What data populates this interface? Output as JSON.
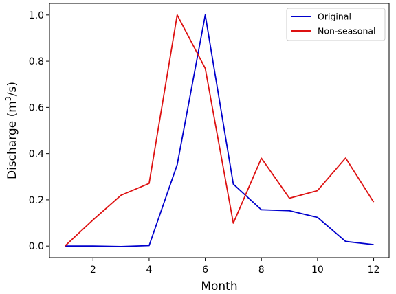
{
  "chart_data": {
    "type": "line",
    "title": "",
    "xlabel": "Month",
    "ylabel_main": "Discharge (m",
    "ylabel_sup": "3",
    "ylabel_tail": "/s)",
    "x": [
      1,
      2,
      3,
      4,
      5,
      6,
      7,
      8,
      9,
      10,
      11,
      12
    ],
    "xlim": [
      0.45,
      12.55
    ],
    "ylim": [
      -0.05,
      1.05
    ],
    "xticks": [
      "2",
      "4",
      "6",
      "8",
      "10",
      "12"
    ],
    "xtick_values": [
      2,
      4,
      6,
      8,
      10,
      12
    ],
    "yticks": [
      "0.0",
      "0.2",
      "0.4",
      "0.6",
      "0.8",
      "1.0"
    ],
    "ytick_values": [
      0.0,
      0.2,
      0.4,
      0.6,
      0.8,
      1.0
    ],
    "grid": false,
    "legend_position": "top-right",
    "series": [
      {
        "name": "Original",
        "color": "#0000cc",
        "values": [
          0.0,
          0.0,
          -0.002,
          0.002,
          0.352,
          1.0,
          0.268,
          0.157,
          0.153,
          0.124,
          0.02,
          0.006
        ]
      },
      {
        "name": "Non-seasonal",
        "color": "#dd1111",
        "values": [
          0.0,
          0.113,
          0.22,
          0.271,
          1.0,
          0.769,
          0.099,
          0.38,
          0.207,
          0.24,
          0.381,
          0.19
        ]
      }
    ]
  }
}
